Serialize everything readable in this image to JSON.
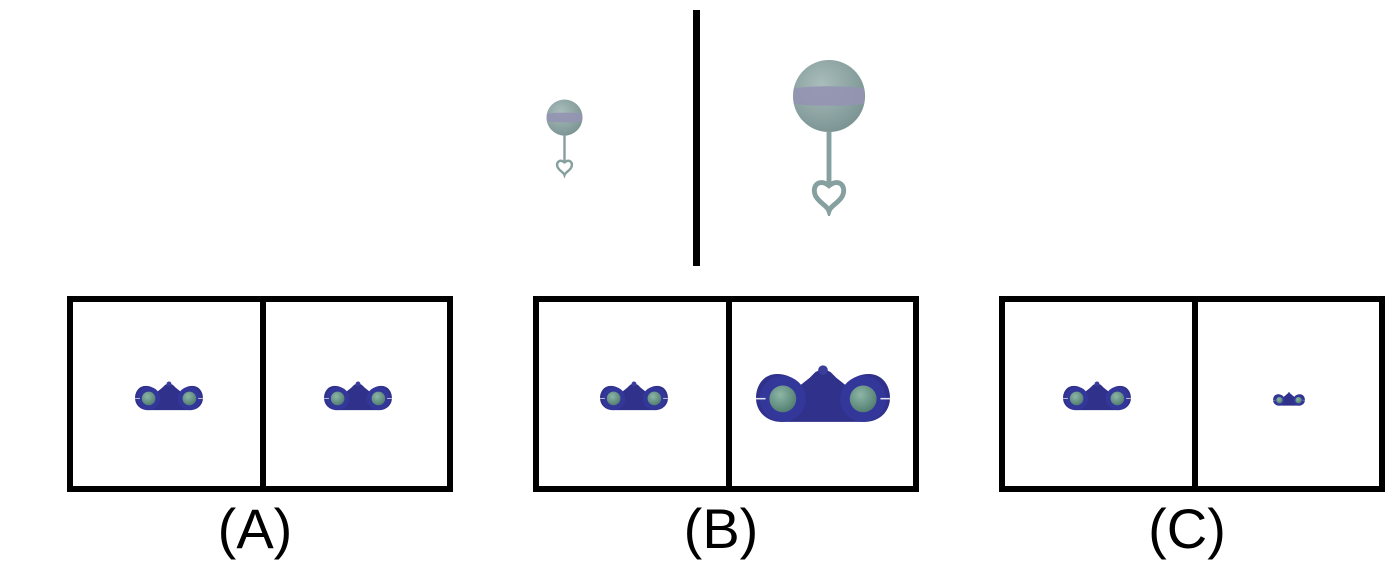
{
  "reference": {
    "left_object_icon": "rattle-icon",
    "right_object_icon": "rattle-icon"
  },
  "options": [
    {
      "label": "(A)",
      "left_icon": "binoculars-icon",
      "right_icon": "binoculars-icon"
    },
    {
      "label": "(B)",
      "left_icon": "binoculars-icon",
      "right_icon": "binoculars-icon"
    },
    {
      "label": "(C)",
      "left_icon": "binoculars-icon",
      "right_icon": "binoculars-icon"
    }
  ],
  "colors": {
    "rattle_body": "#8fa7a6",
    "rattle_band": "#9494b2",
    "binoculars_body": "#2f318a",
    "binoculars_lens": "#6f9a8c",
    "frame": "#000000"
  }
}
